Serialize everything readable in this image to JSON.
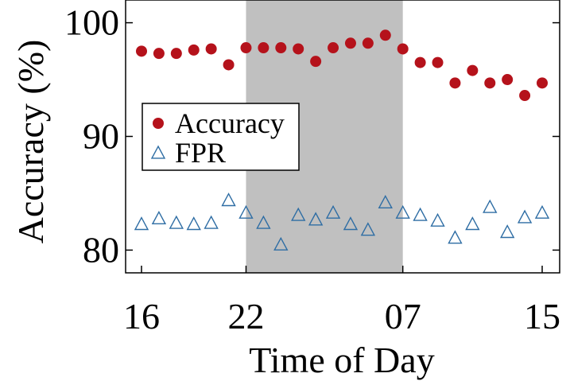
{
  "chart_data": {
    "type": "scatter",
    "title": "",
    "xlabel": "Time of Day",
    "ylabel": "Accuracy (%)",
    "xlim": [
      0,
      23
    ],
    "ylim": [
      78,
      102
    ],
    "x_ticks": [
      {
        "value": 0,
        "label": "16"
      },
      {
        "value": 6,
        "label": "22"
      },
      {
        "value": 15,
        "label": "07"
      },
      {
        "value": 23,
        "label": "15"
      }
    ],
    "y_ticks": [
      {
        "value": 80,
        "label": "80"
      },
      {
        "value": 90,
        "label": "90"
      },
      {
        "value": 100,
        "label": "100"
      }
    ],
    "shaded_region": {
      "x_start": 6,
      "x_end": 15,
      "color": "#c0c0c0"
    },
    "x": [
      0,
      1,
      2,
      3,
      4,
      5,
      6,
      7,
      8,
      9,
      10,
      11,
      12,
      13,
      14,
      15,
      16,
      17,
      18,
      19,
      20,
      21,
      22,
      23
    ],
    "series": [
      {
        "name": "Accuracy",
        "marker": "filled-circle",
        "color": "#b5121b",
        "values": [
          97.5,
          97.3,
          97.3,
          97.6,
          97.7,
          96.3,
          97.8,
          97.8,
          97.8,
          97.7,
          96.6,
          97.8,
          98.2,
          98.2,
          98.9,
          97.7,
          96.5,
          96.5,
          94.7,
          95.8,
          94.7,
          95.0,
          93.6,
          94.7
        ]
      },
      {
        "name": "FPR",
        "marker": "open-triangle",
        "color": "#2e6da4",
        "values": [
          82.3,
          82.8,
          82.4,
          82.3,
          82.4,
          84.4,
          83.3,
          82.4,
          80.5,
          83.1,
          82.7,
          83.3,
          82.3,
          81.8,
          84.2,
          83.3,
          83.1,
          82.6,
          81.1,
          82.3,
          83.8,
          81.6,
          82.9,
          83.3
        ]
      }
    ],
    "legend": {
      "position": "middle-left",
      "entries": [
        "Accuracy",
        "FPR"
      ]
    },
    "grid": false
  }
}
